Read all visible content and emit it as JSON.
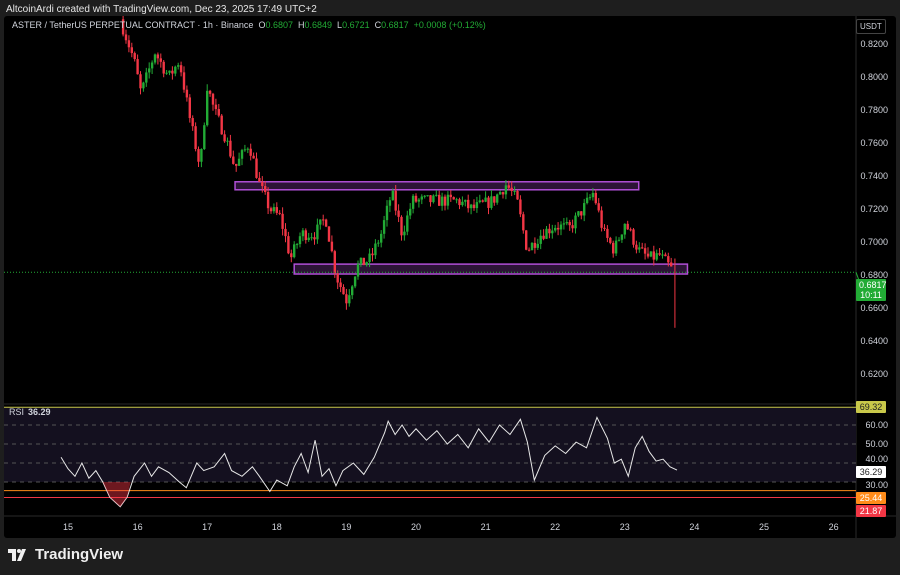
{
  "credit": "AltcoinArdi created with TradingView.com, Dec 23, 2025 17:49 UTC+2",
  "legend": {
    "symbol": "ASTER / TetherUS PERPETUAL CONTRACT · 1h · Binance",
    "o_label": "O",
    "o": "0.6807",
    "h_label": "H",
    "h": "0.6849",
    "l_label": "L",
    "l": "0.6721",
    "c_label": "C",
    "c": "0.6817",
    "change": "+0.0008 (+0.12%)"
  },
  "currency": "USDT",
  "price_axis": [
    "0.8200",
    "0.8000",
    "0.7800",
    "0.7600",
    "0.7400",
    "0.7200",
    "0.7000",
    "0.6800",
    "0.6600",
    "0.6400",
    "0.6200"
  ],
  "current_price": {
    "value": "0.6817",
    "countdown": "10:11",
    "color": "#22ab35"
  },
  "rsi": {
    "label": "RSI",
    "value": "36.29",
    "axis": [
      "60.00",
      "50.00",
      "40.00",
      "30.00"
    ],
    "upper_level": "69.32",
    "lower_levels": [
      "25.44",
      "21.87"
    ],
    "points": [
      [
        14.9,
        43
      ],
      [
        15.0,
        37
      ],
      [
        15.1,
        33
      ],
      [
        15.2,
        40
      ],
      [
        15.3,
        32
      ],
      [
        15.4,
        36
      ],
      [
        15.5,
        30
      ],
      [
        15.6,
        22
      ],
      [
        15.75,
        17
      ],
      [
        15.85,
        22
      ],
      [
        15.95,
        33
      ],
      [
        16.1,
        40
      ],
      [
        16.2,
        33
      ],
      [
        16.3,
        38
      ],
      [
        16.45,
        35
      ],
      [
        16.6,
        30
      ],
      [
        16.7,
        27
      ],
      [
        16.85,
        40
      ],
      [
        16.95,
        36
      ],
      [
        17.1,
        38
      ],
      [
        17.25,
        45
      ],
      [
        17.35,
        36
      ],
      [
        17.5,
        33
      ],
      [
        17.65,
        38
      ],
      [
        17.75,
        33
      ],
      [
        17.9,
        25
      ],
      [
        18.0,
        31
      ],
      [
        18.15,
        28
      ],
      [
        18.25,
        38
      ],
      [
        18.35,
        45
      ],
      [
        18.45,
        35
      ],
      [
        18.55,
        52
      ],
      [
        18.65,
        33
      ],
      [
        18.75,
        37
      ],
      [
        18.85,
        28
      ],
      [
        18.95,
        36
      ],
      [
        19.1,
        40
      ],
      [
        19.25,
        34
      ],
      [
        19.4,
        43
      ],
      [
        19.55,
        56
      ],
      [
        19.6,
        62
      ],
      [
        19.7,
        55
      ],
      [
        19.8,
        60
      ],
      [
        19.9,
        54
      ],
      [
        20.0,
        58
      ],
      [
        20.15,
        52
      ],
      [
        20.3,
        57
      ],
      [
        20.45,
        50
      ],
      [
        20.6,
        55
      ],
      [
        20.75,
        48
      ],
      [
        20.9,
        58
      ],
      [
        21.05,
        51
      ],
      [
        21.2,
        60
      ],
      [
        21.35,
        55
      ],
      [
        21.5,
        63
      ],
      [
        21.6,
        51
      ],
      [
        21.7,
        31
      ],
      [
        21.85,
        44
      ],
      [
        22.0,
        49
      ],
      [
        22.15,
        45
      ],
      [
        22.3,
        51
      ],
      [
        22.45,
        48
      ],
      [
        22.6,
        64
      ],
      [
        22.75,
        53
      ],
      [
        22.85,
        40
      ],
      [
        22.95,
        42
      ],
      [
        23.05,
        33
      ],
      [
        23.15,
        48
      ],
      [
        23.25,
        54
      ],
      [
        23.35,
        46
      ],
      [
        23.45,
        41
      ],
      [
        23.55,
        42
      ],
      [
        23.65,
        38
      ],
      [
        23.75,
        36.29
      ]
    ]
  },
  "x_axis": [
    "15",
    "16",
    "17",
    "18",
    "19",
    "20",
    "21",
    "22",
    "23",
    "24",
    "25",
    "26"
  ],
  "price_path": [
    [
      15.75,
      0.835
    ],
    [
      15.95,
      0.81
    ],
    [
      16.05,
      0.79
    ],
    [
      16.25,
      0.815
    ],
    [
      16.45,
      0.8
    ],
    [
      16.6,
      0.81
    ],
    [
      16.75,
      0.775
    ],
    [
      16.9,
      0.745
    ],
    [
      17.0,
      0.795
    ],
    [
      17.1,
      0.78
    ],
    [
      17.25,
      0.765
    ],
    [
      17.4,
      0.745
    ],
    [
      17.6,
      0.76
    ],
    [
      17.75,
      0.735
    ],
    [
      17.9,
      0.72
    ],
    [
      18.05,
      0.715
    ],
    [
      18.2,
      0.69
    ],
    [
      18.35,
      0.705
    ],
    [
      18.55,
      0.705
    ],
    [
      18.7,
      0.715
    ],
    [
      18.85,
      0.68
    ],
    [
      19.0,
      0.665
    ],
    [
      19.15,
      0.685
    ],
    [
      19.35,
      0.69
    ],
    [
      19.5,
      0.705
    ],
    [
      19.65,
      0.73
    ],
    [
      19.8,
      0.705
    ],
    [
      19.95,
      0.725
    ],
    [
      20.2,
      0.725
    ],
    [
      20.6,
      0.725
    ],
    [
      20.8,
      0.72
    ],
    [
      21.1,
      0.725
    ],
    [
      21.3,
      0.735
    ],
    [
      21.45,
      0.725
    ],
    [
      21.6,
      0.695
    ],
    [
      21.8,
      0.705
    ],
    [
      22.0,
      0.71
    ],
    [
      22.2,
      0.708
    ],
    [
      22.4,
      0.72
    ],
    [
      22.55,
      0.73
    ],
    [
      22.7,
      0.705
    ],
    [
      22.85,
      0.695
    ],
    [
      23.0,
      0.712
    ],
    [
      23.2,
      0.695
    ],
    [
      23.35,
      0.69
    ],
    [
      23.5,
      0.692
    ],
    [
      23.7,
      0.682
    ]
  ],
  "zones": [
    {
      "from": 17.4,
      "to": 23.2,
      "low": 0.7335,
      "high": 0.7365
    },
    {
      "from": 18.25,
      "to": 23.9,
      "low": 0.6806,
      "high": 0.6866
    }
  ],
  "colors": {
    "up": "#22ab35",
    "down": "#f23645",
    "zone": "#b04fd6"
  },
  "brand": "TradingView"
}
